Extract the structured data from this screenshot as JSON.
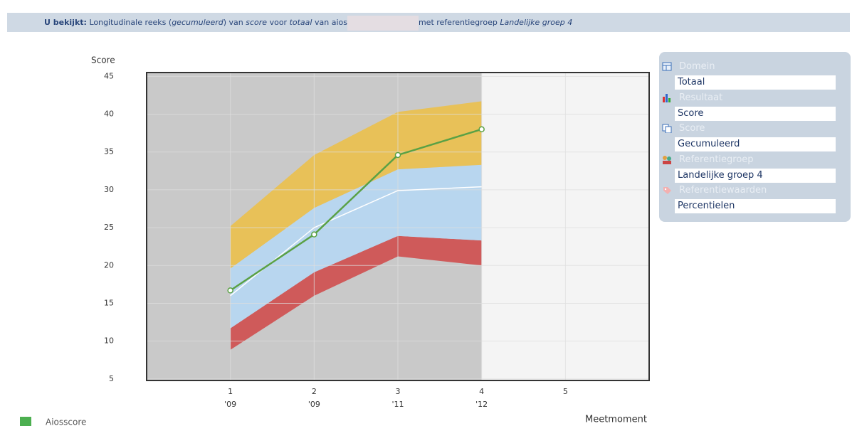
{
  "header": {
    "label": "U bekijkt:",
    "parts": [
      "Longitudinale reeks (",
      "gecumuleerd",
      ") van ",
      "score",
      " voor ",
      "totaal",
      " van aios",
      "met referentiegroep ",
      "Landelijke groep 4"
    ]
  },
  "chart_data": {
    "type": "band",
    "y_label": "Score",
    "x_label": "Meetmoment",
    "xlim": [
      0,
      6
    ],
    "ylim": [
      4.8,
      45.5
    ],
    "xticks": [
      1,
      2,
      3,
      4,
      5
    ],
    "xtick_sublabels": [
      "'09",
      "'09",
      "'11",
      "'12",
      null
    ],
    "yticks": [
      5,
      10,
      15,
      20,
      25,
      30,
      35,
      40,
      45
    ],
    "grid": true,
    "background_split": 4,
    "x": [
      1,
      2,
      3,
      4
    ],
    "bands": [
      {
        "color": "#cf5a5a",
        "lower": [
          8.85,
          16.0,
          21.2,
          20.0
        ],
        "upper": [
          11.7,
          19.1,
          23.9,
          23.3
        ]
      },
      {
        "color": "#b8d6ef",
        "lower": [
          11.7,
          19.1,
          23.9,
          23.3
        ],
        "upper": [
          19.6,
          27.6,
          32.7,
          33.3
        ]
      },
      {
        "color": "#e8c158",
        "lower": [
          19.6,
          27.6,
          32.7,
          33.3
        ],
        "upper": [
          25.2,
          34.6,
          40.3,
          41.7
        ]
      }
    ],
    "median": {
      "color": "#ffffff",
      "values": [
        16.0,
        25.0,
        29.9,
        30.4
      ]
    },
    "series": [
      {
        "name": "Aiosscore",
        "color": "#5aa145",
        "values": [
          16.7,
          24.1,
          34.6,
          38.0
        ]
      }
    ]
  },
  "panel": {
    "items": [
      {
        "label": "Domein",
        "value": "Totaal"
      },
      {
        "label": "Resultaat",
        "value": "Score"
      },
      {
        "label": "Score",
        "value": "Gecumuleerd"
      },
      {
        "label": "Referentiegroep",
        "value": "Landelijke groep 4"
      },
      {
        "label": "Referentiewaarden",
        "value": "Percentielen"
      }
    ]
  }
}
